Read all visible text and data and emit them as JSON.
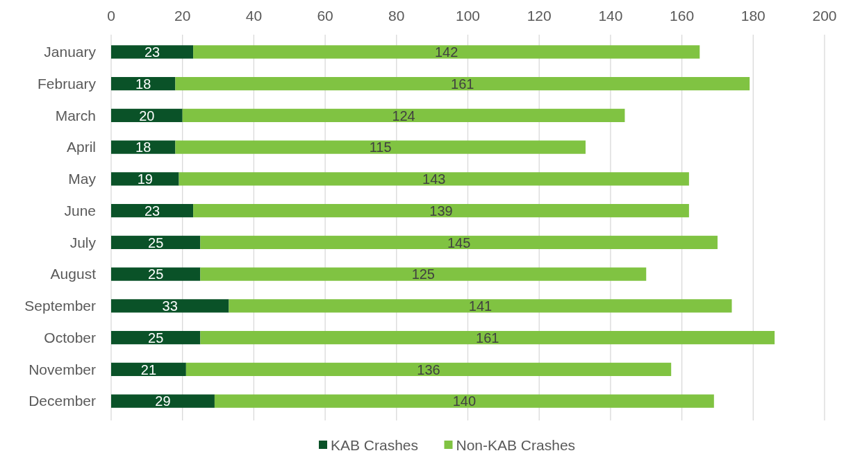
{
  "chart_data": {
    "type": "bar",
    "orientation": "horizontal",
    "stacked": true,
    "categories": [
      "January",
      "February",
      "March",
      "April",
      "May",
      "June",
      "July",
      "August",
      "September",
      "October",
      "November",
      "December"
    ],
    "series": [
      {
        "name": "KAB Crashes",
        "color": "#0a5228",
        "values": [
          23,
          18,
          20,
          18,
          19,
          23,
          25,
          25,
          33,
          25,
          21,
          29
        ]
      },
      {
        "name": "Non-KAB Crashes",
        "color": "#80c342",
        "values": [
          142,
          161,
          124,
          115,
          143,
          139,
          145,
          125,
          141,
          161,
          136,
          140
        ]
      }
    ],
    "xlim": [
      0,
      200
    ],
    "xticks": [
      0,
      20,
      40,
      60,
      80,
      100,
      120,
      140,
      160,
      180,
      200
    ],
    "grid": "x",
    "legend": "bottom",
    "data_labels": true
  }
}
